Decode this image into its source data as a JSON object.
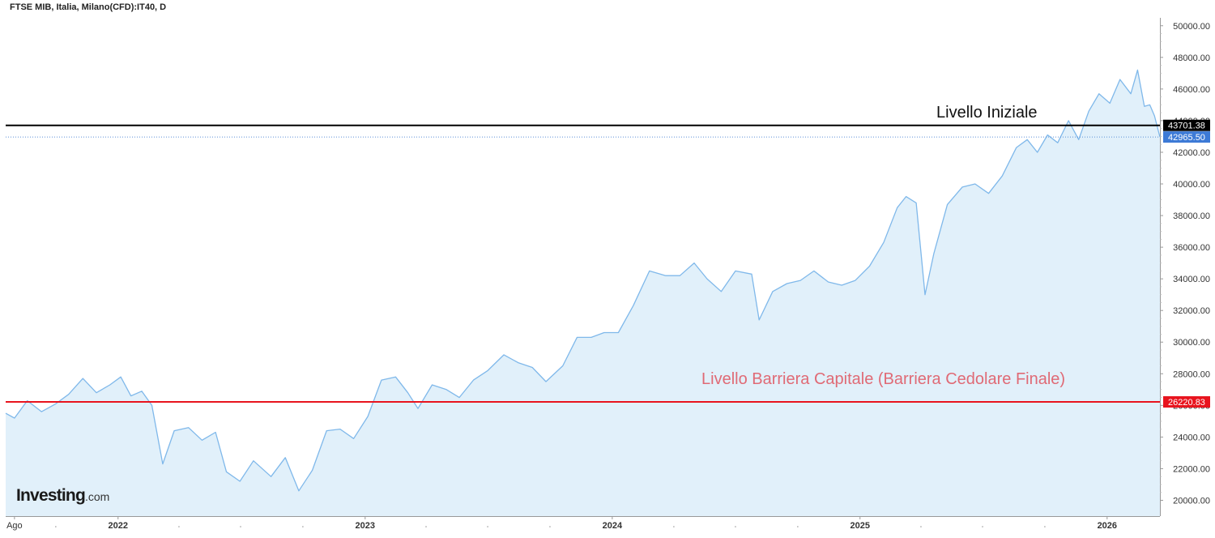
{
  "header": {
    "title": "FTSE MIB, Italia, Milano(CFD):IT40, D"
  },
  "brand": {
    "name": "Investing",
    "suffix": ".com"
  },
  "annotations": {
    "initial_level": "Livello Iniziale",
    "barrier_level": "Livello Barriera Capitale (Barriera Cedolare Finale)"
  },
  "chart_data": {
    "type": "area",
    "title": "FTSE MIB, Italia, Milano(CFD):IT40, D",
    "xlabel": "",
    "ylabel": "",
    "x_ticks": [
      "Ago",
      "2022",
      "2023",
      "2024",
      "2025",
      "2026"
    ],
    "y_ticks": [
      "20000.00",
      "22000.00",
      "24000.00",
      "26000.00",
      "28000.00",
      "30000.00",
      "32000.00",
      "34000.00",
      "36000.00",
      "38000.00",
      "40000.00",
      "42000.00",
      "44000.00",
      "46000.00",
      "48000.00",
      "50000.00"
    ],
    "ylim": [
      19000,
      50500
    ],
    "xlim": [
      "2021-07-19",
      "2026-03-20"
    ],
    "grid": false,
    "colors": {
      "line": "#7fb8ea",
      "fill": "#e1f0fa",
      "initial_line": "#000000",
      "barrier_line": "#e8141e",
      "last_price_line": "#5b8fd8"
    },
    "series": [
      {
        "x": [
          "2021-07-19",
          "2021-08-01",
          "2021-08-20",
          "2021-09-10",
          "2021-10-01",
          "2021-10-20",
          "2021-11-10",
          "2021-11-30",
          "2021-12-20",
          "2022-01-05",
          "2022-01-20",
          "2022-02-05",
          "2022-02-20",
          "2022-03-08",
          "2022-03-25",
          "2022-04-15",
          "2022-05-05",
          "2022-05-25",
          "2022-06-10",
          "2022-06-30",
          "2022-07-20",
          "2022-08-15",
          "2022-09-05",
          "2022-09-25",
          "2022-10-15",
          "2022-11-05",
          "2022-11-25",
          "2022-12-15",
          "2023-01-05",
          "2023-01-25",
          "2023-02-15",
          "2023-03-05",
          "2023-03-20",
          "2023-04-10",
          "2023-05-01",
          "2023-05-20",
          "2023-06-10",
          "2023-07-01",
          "2023-07-25",
          "2023-08-15",
          "2023-09-05",
          "2023-09-25",
          "2023-10-20",
          "2023-11-10",
          "2023-12-01",
          "2023-12-20",
          "2024-01-10",
          "2024-02-01",
          "2024-02-25",
          "2024-03-20",
          "2024-04-10",
          "2024-05-01",
          "2024-05-20",
          "2024-06-10",
          "2024-07-01",
          "2024-07-25",
          "2024-08-05",
          "2024-08-25",
          "2024-09-15",
          "2024-10-05",
          "2024-10-25",
          "2024-11-15",
          "2024-12-05",
          "2024-12-25",
          "2025-01-15",
          "2025-02-05",
          "2025-02-25",
          "2025-03-10",
          "2025-03-25",
          "2025-04-07",
          "2025-04-20",
          "2025-05-10",
          "2025-06-01",
          "2025-06-20",
          "2025-07-10",
          "2025-07-30",
          "2025-08-20",
          "2025-09-05",
          "2025-09-20",
          "2025-10-05",
          "2025-10-20",
          "2025-11-05",
          "2025-11-20",
          "2025-12-05",
          "2025-12-20",
          "2026-01-05",
          "2026-01-20",
          "2026-02-05",
          "2026-02-15",
          "2026-02-25",
          "2026-03-05",
          "2026-03-12",
          "2026-03-20"
        ],
        "values": [
          25500,
          25200,
          26300,
          25600,
          26100,
          26700,
          27700,
          26800,
          27300,
          27800,
          26600,
          26900,
          26000,
          22300,
          24400,
          24600,
          23800,
          24300,
          21800,
          21200,
          22500,
          21500,
          22700,
          20600,
          21900,
          24400,
          24500,
          23900,
          25300,
          27600,
          27800,
          26800,
          25800,
          27300,
          27000,
          26500,
          27600,
          28200,
          29200,
          28700,
          28400,
          27500,
          28500,
          30300,
          30300,
          30600,
          30600,
          32300,
          34500,
          34200,
          34200,
          35000,
          34000,
          33200,
          34500,
          34300,
          31400,
          33200,
          33700,
          33900,
          34500,
          33800,
          33600,
          33900,
          34800,
          36300,
          38500,
          39200,
          38800,
          33000,
          35600,
          38700,
          39800,
          40000,
          39400,
          40500,
          42300,
          42800,
          42000,
          43100,
          42600,
          44000,
          42800,
          44600,
          45700,
          45100,
          46600,
          45700,
          47200,
          44900,
          45000,
          44300,
          42965.5
        ]
      }
    ],
    "reference_lines": [
      {
        "name": "Livello Iniziale",
        "value": 43701.38,
        "label": "43701.38"
      },
      {
        "name": "Livello Barriera Capitale (Barriera Cedolare Finale)",
        "value": 26220.83,
        "label": "26220.83"
      }
    ],
    "last_price": {
      "value": 42965.5,
      "label": "42965.50"
    }
  }
}
